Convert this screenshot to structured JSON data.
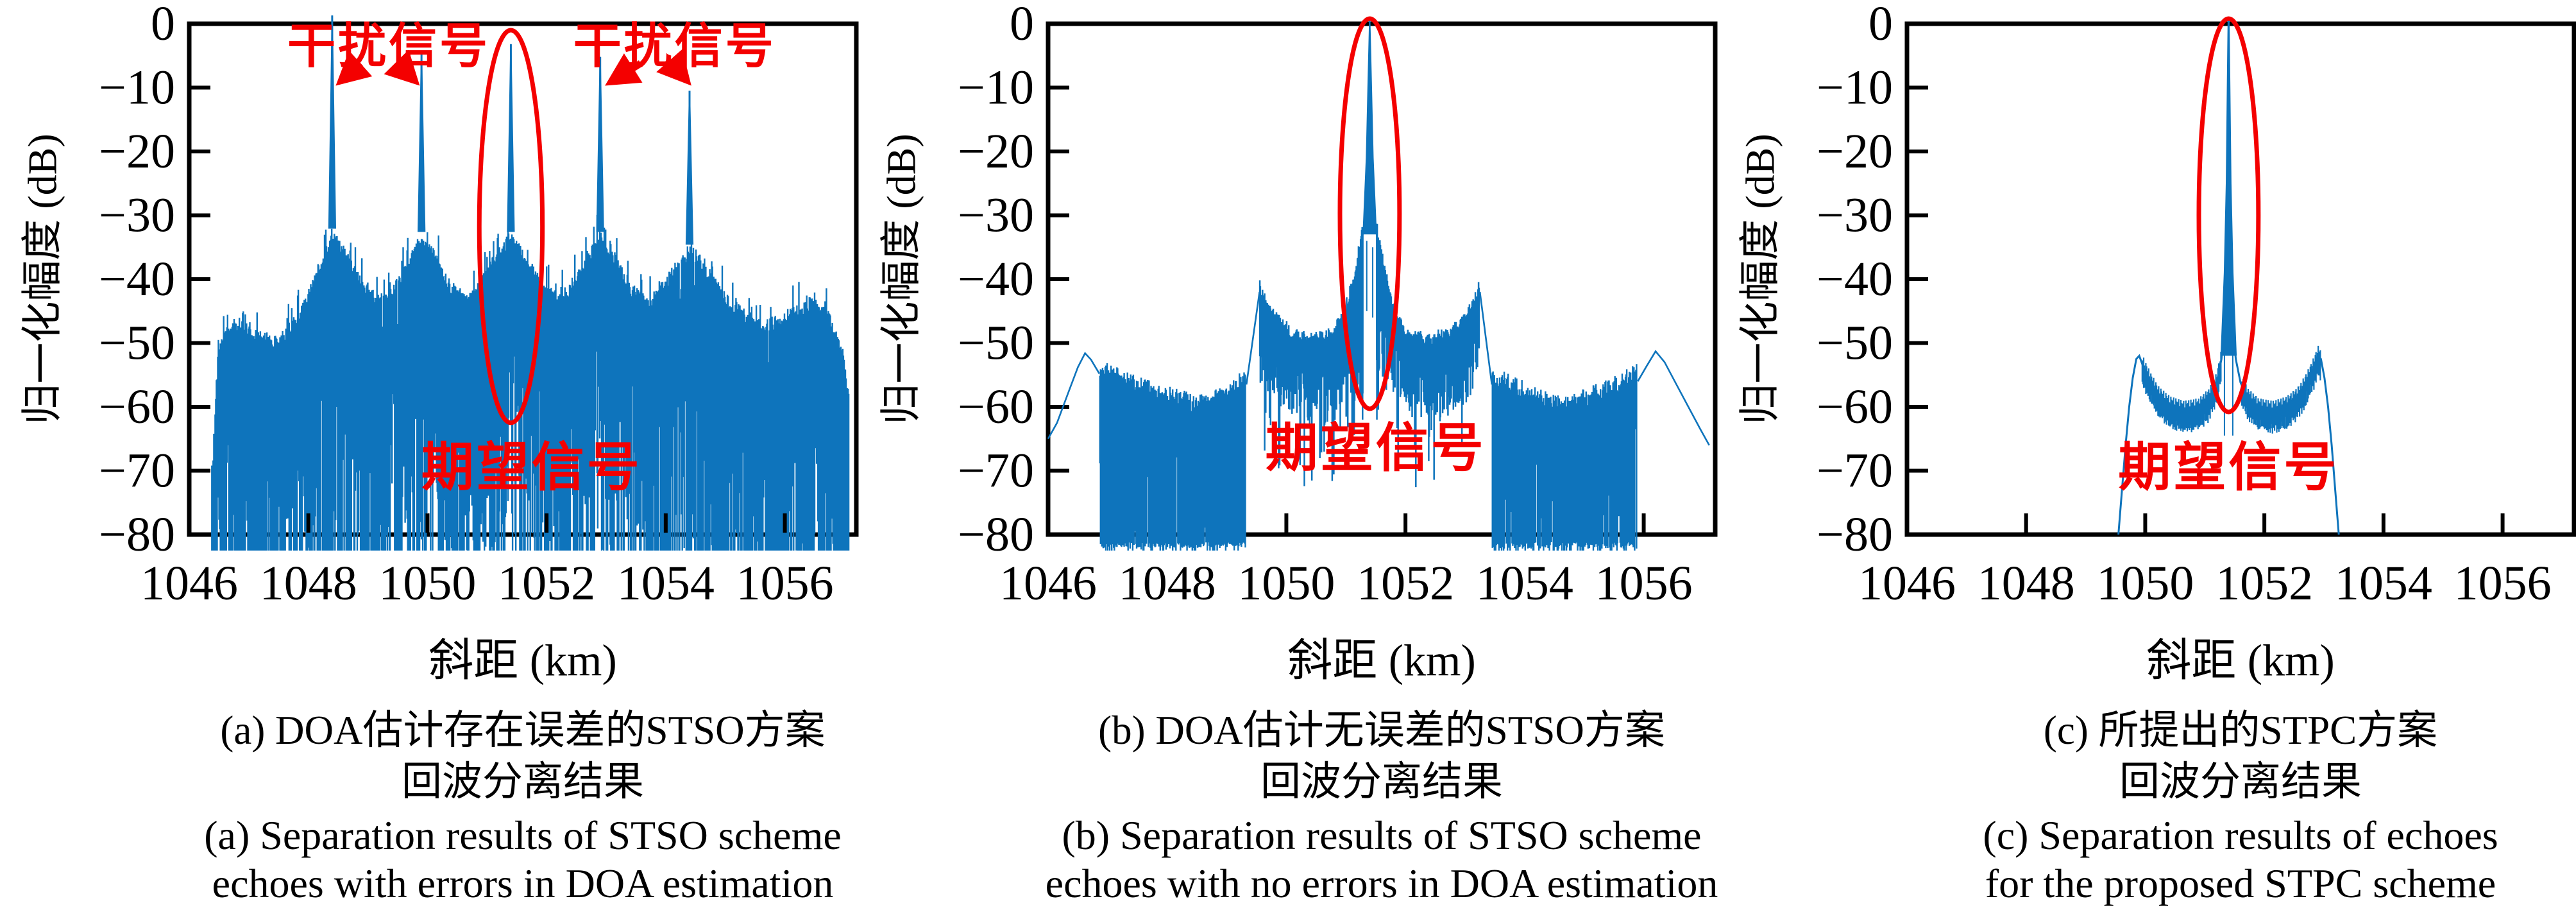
{
  "colors": {
    "signal": "#0e74bc",
    "annotation": "#f40000",
    "axis": "#000000",
    "background": "#ffffff"
  },
  "axes": {
    "xlabel": "斜距 (km)",
    "ylabel": "归一化幅度 (dB)",
    "xlim": [
      1046,
      1057.2
    ],
    "ylim": [
      -80,
      0
    ],
    "xticks": [
      1046,
      1048,
      1050,
      1052,
      1054,
      1056
    ],
    "xtick_labels": [
      "1046",
      "1048",
      "1050",
      "1052",
      "1054",
      "1056"
    ],
    "yticks": [
      0,
      -10,
      -20,
      -30,
      -40,
      -50,
      -60,
      -70,
      -80
    ],
    "ytick_labels": [
      "0",
      "−10",
      "−20",
      "−30",
      "−40",
      "−50",
      "−60",
      "−70",
      "−80"
    ],
    "grid": false
  },
  "chart_data": [
    {
      "panel": "a",
      "type": "line",
      "xlabel": "斜距 (km)",
      "ylabel": "归一化幅度 (dB)",
      "desired_signal_km": 1051.4,
      "peaks": [
        {
          "km": 1048.4,
          "db": 0
        },
        {
          "km": 1049.9,
          "db": -4.5
        },
        {
          "km": 1051.4,
          "db": -3.2
        },
        {
          "km": 1052.9,
          "db": -5.2
        },
        {
          "km": 1054.4,
          "db": -10.5
        }
      ],
      "noise_floor_db": -80,
      "noise_envelope": [
        [
          1046.35,
          -80
        ],
        [
          1046.45,
          -58
        ],
        [
          1046.55,
          -50
        ],
        [
          1046.8,
          -48
        ],
        [
          1047.1,
          -50
        ],
        [
          1047.5,
          -51
        ],
        [
          1047.9,
          -46
        ],
        [
          1048.15,
          -40
        ],
        [
          1048.4,
          -34
        ],
        [
          1048.65,
          -38
        ],
        [
          1048.9,
          -42
        ],
        [
          1049.2,
          -44.5
        ],
        [
          1049.5,
          -42
        ],
        [
          1049.75,
          -37.5
        ],
        [
          1049.9,
          -34.5
        ],
        [
          1050.1,
          -37
        ],
        [
          1050.4,
          -42.5
        ],
        [
          1050.7,
          -44.5
        ],
        [
          1050.95,
          -41
        ],
        [
          1051.2,
          -37
        ],
        [
          1051.4,
          -34.5
        ],
        [
          1051.6,
          -37
        ],
        [
          1051.9,
          -42
        ],
        [
          1052.2,
          -44.5
        ],
        [
          1052.45,
          -42
        ],
        [
          1052.7,
          -38
        ],
        [
          1052.9,
          -34.5
        ],
        [
          1053.1,
          -37.5
        ],
        [
          1053.4,
          -42.5
        ],
        [
          1053.7,
          -45
        ],
        [
          1054.05,
          -41
        ],
        [
          1054.4,
          -36.5
        ],
        [
          1054.7,
          -40
        ],
        [
          1055.0,
          -44
        ],
        [
          1055.35,
          -47
        ],
        [
          1055.7,
          -48.5
        ],
        [
          1056.1,
          -46.5
        ],
        [
          1056.5,
          -44.5
        ],
        [
          1056.8,
          -48
        ],
        [
          1057.0,
          -54
        ],
        [
          1057.1,
          -62
        ]
      ],
      "annotations": {
        "interference_labels": [
          {
            "text": "干扰信号",
            "km": 1049.35,
            "db": -3.6
          },
          {
            "text": "干扰信号",
            "km": 1054.15,
            "db": -3.6
          }
        ],
        "arrows": [
          {
            "from": [
              1048.88,
              -6.2
            ],
            "to": [
              1048.46,
              -9.7
            ]
          },
          {
            "from": [
              1049.5,
              -6.2
            ],
            "to": [
              1049.87,
              -9.7
            ]
          },
          {
            "from": [
              1053.58,
              -6.2
            ],
            "to": [
              1052.98,
              -9.7
            ]
          },
          {
            "from": [
              1054.1,
              -6.2
            ],
            "to": [
              1054.43,
              -9.7
            ]
          }
        ],
        "ellipse": {
          "cx": 1051.4,
          "rx": 0.53,
          "top": -1.0,
          "bottom": -62.5
        },
        "desired_label": {
          "text": "期望信号",
          "km": 1051.75,
          "db": -69.5
        }
      }
    },
    {
      "panel": "b",
      "type": "line",
      "xlabel": "斜距 (km)",
      "ylabel": "归一化幅度 (dB)",
      "desired_signal_km": 1051.4,
      "peaks": [
        {
          "km": 1051.4,
          "db": 0
        }
      ],
      "outer_humps": [
        {
          "km": 1046.62,
          "db": -51.6
        },
        {
          "km": 1056.2,
          "db": -51.3
        }
      ],
      "pedestal_cusps": [
        {
          "km": 1049.55,
          "db": -42
        },
        {
          "km": 1053.25,
          "db": -42
        }
      ],
      "left_tail": [
        [
          1046.0,
          -65
        ],
        [
          1046.15,
          -62.5
        ],
        [
          1046.35,
          -57.5
        ],
        [
          1046.5,
          -53.8
        ],
        [
          1046.62,
          -51.6
        ],
        [
          1046.72,
          -52.6
        ],
        [
          1046.86,
          -54.8
        ]
      ],
      "left_floor_env": [
        [
          1046.86,
          -55.5
        ],
        [
          1047.2,
          -57
        ],
        [
          1047.6,
          -58.5
        ],
        [
          1048.1,
          -60
        ],
        [
          1048.5,
          -61
        ],
        [
          1048.9,
          -60
        ],
        [
          1049.15,
          -58.3
        ],
        [
          1049.33,
          -56.5
        ]
      ],
      "pedestal_env": [
        [
          1049.55,
          -42
        ],
        [
          1049.68,
          -45.5
        ],
        [
          1049.85,
          -47.5
        ],
        [
          1050.1,
          -49.5
        ],
        [
          1050.45,
          -50.5
        ],
        [
          1050.8,
          -49.5
        ],
        [
          1051.0,
          -45.5
        ],
        [
          1051.15,
          -40
        ],
        [
          1051.28,
          -33
        ],
        [
          1051.52,
          -33
        ],
        [
          1051.65,
          -40
        ],
        [
          1051.8,
          -45.5
        ],
        [
          1052.0,
          -49.5
        ],
        [
          1052.35,
          -50.5
        ],
        [
          1052.7,
          -49.7
        ],
        [
          1052.95,
          -47.5
        ],
        [
          1053.12,
          -45.5
        ],
        [
          1053.25,
          -42
        ]
      ],
      "right_floor_env": [
        [
          1053.45,
          -56.5
        ],
        [
          1053.7,
          -57.5
        ],
        [
          1054.1,
          -59.5
        ],
        [
          1054.5,
          -61
        ],
        [
          1054.9,
          -60.5
        ],
        [
          1055.3,
          -59
        ],
        [
          1055.65,
          -57.5
        ],
        [
          1055.89,
          -56
        ]
      ],
      "right_tail": [
        [
          1055.9,
          -56
        ],
        [
          1056.05,
          -53.6
        ],
        [
          1056.2,
          -51.3
        ],
        [
          1056.35,
          -53
        ],
        [
          1056.55,
          -56.5
        ],
        [
          1056.75,
          -60
        ],
        [
          1056.95,
          -63.5
        ],
        [
          1057.1,
          -66
        ]
      ],
      "mainlobe": [
        [
          -0.11,
          -33
        ],
        [
          -0.055,
          -21
        ],
        [
          -0.028,
          -10
        ],
        [
          0,
          0.9
        ],
        [
          0.028,
          -10
        ],
        [
          0.055,
          -21
        ],
        [
          0.11,
          -33
        ]
      ],
      "annotations": {
        "ellipse": {
          "cx": 1051.4,
          "rx": 0.5,
          "top": 0.8,
          "bottom": -60.3
        },
        "desired_label": {
          "text": "期望信号",
          "km": 1051.5,
          "db": -66.5
        }
      }
    },
    {
      "panel": "c",
      "type": "line",
      "xlabel": "斜距 (km)",
      "ylabel": "归一化幅度 (dB)",
      "desired_signal_km": 1051.4,
      "peaks": [
        {
          "km": 1051.4,
          "db": 0
        }
      ],
      "shoulders": [
        {
          "km": 1049.9,
          "db": -52
        },
        {
          "km": 1052.9,
          "db": -52
        }
      ],
      "curve_left": [
        [
          1049.55,
          -80
        ],
        [
          1049.61,
          -73
        ],
        [
          1049.67,
          -66
        ],
        [
          1049.73,
          -60
        ],
        [
          1049.79,
          -55.5
        ],
        [
          1049.85,
          -52.5
        ],
        [
          1049.9,
          -52
        ],
        [
          1049.97,
          -53.8
        ],
        [
          1050.08,
          -56
        ],
        [
          1050.22,
          -58.3
        ],
        [
          1050.42,
          -59.9
        ],
        [
          1050.65,
          -60.6
        ],
        [
          1050.9,
          -60.2
        ],
        [
          1051.08,
          -58.6
        ],
        [
          1051.2,
          -56.2
        ],
        [
          1051.28,
          -52.5
        ],
        [
          1051.33,
          -47
        ]
      ],
      "curve_right": [
        [
          1051.47,
          -47
        ],
        [
          1051.52,
          -52.5
        ],
        [
          1051.6,
          -56.2
        ],
        [
          1051.72,
          -58.6
        ],
        [
          1051.9,
          -60.2
        ],
        [
          1052.15,
          -60.6
        ],
        [
          1052.38,
          -59.9
        ],
        [
          1052.58,
          -58.3
        ],
        [
          1052.72,
          -56
        ],
        [
          1052.83,
          -53.8
        ],
        [
          1052.9,
          -52
        ],
        [
          1052.95,
          -52.5
        ],
        [
          1053.01,
          -55.5
        ],
        [
          1053.07,
          -60
        ],
        [
          1053.13,
          -66
        ],
        [
          1053.19,
          -73
        ],
        [
          1053.25,
          -80
        ]
      ],
      "mainlobe": [
        [
          -0.12,
          -52
        ],
        [
          -0.065,
          -39
        ],
        [
          -0.032,
          -25
        ],
        [
          -0.014,
          -10
        ],
        [
          0,
          0.9
        ],
        [
          0.014,
          -10
        ],
        [
          0.032,
          -25
        ],
        [
          0.065,
          -39
        ],
        [
          0.12,
          -52
        ]
      ],
      "notches": [
        {
          "km": 1051.33,
          "from": -50,
          "to": -64.5
        },
        {
          "km": 1051.47,
          "from": -50,
          "to": -64.5
        }
      ],
      "annotations": {
        "ellipse": {
          "cx": 1051.4,
          "rx": 0.5,
          "top": 0.8,
          "bottom": -60.8
        },
        "desired_label": {
          "text": "期望信号",
          "km": 1051.4,
          "db": -69.5
        }
      }
    }
  ],
  "captions": [
    {
      "cn": [
        "(a) DOA估计存在误差的STSO方案",
        "回波分离结果"
      ],
      "en": [
        "(a) Separation results of STSO scheme",
        "echoes with errors in DOA estimation"
      ]
    },
    {
      "cn": [
        "(b) DOA估计无误差的STSO方案",
        "回波分离结果"
      ],
      "en": [
        "(b) Separation results of STSO scheme",
        "echoes with no errors in DOA estimation"
      ]
    },
    {
      "cn": [
        "(c) 所提出的STPC方案",
        "回波分离结果"
      ],
      "en": [
        "(c) Separation results of echoes",
        "for the proposed STPC scheme"
      ]
    }
  ]
}
